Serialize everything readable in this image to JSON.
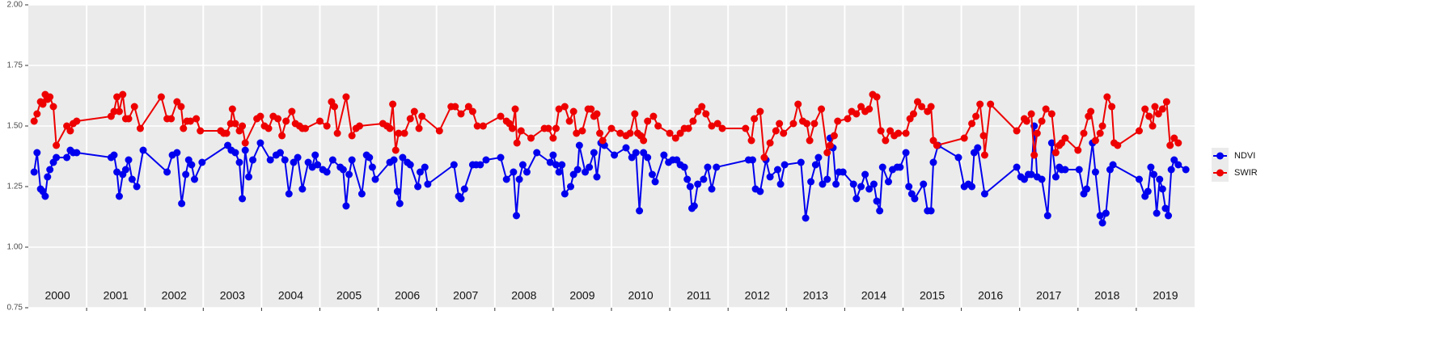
{
  "chart_data": {
    "type": "line",
    "xlim": [
      2000,
      2020
    ],
    "ylim": [
      0.75,
      2.0
    ],
    "yticks": [
      {
        "value": 0.75,
        "label": "0.75"
      },
      {
        "value": 1.0,
        "label": "1.00"
      },
      {
        "value": 1.25,
        "label": "1.25"
      },
      {
        "value": 1.5,
        "label": "1.50"
      },
      {
        "value": 1.75,
        "label": "1.75"
      },
      {
        "value": 2.0,
        "label": "2.00"
      }
    ],
    "xticks": [
      2001,
      2002,
      2003,
      2004,
      2005,
      2006,
      2007,
      2008,
      2009,
      2010,
      2011,
      2012,
      2013,
      2014,
      2015,
      2016,
      2017,
      2018,
      2019
    ],
    "year_labels": [
      2000,
      2001,
      2002,
      2003,
      2004,
      2005,
      2006,
      2007,
      2008,
      2009,
      2010,
      2011,
      2012,
      2013,
      2014,
      2015,
      2016,
      2017,
      2018,
      2019
    ],
    "grid": true,
    "legend": "right",
    "series": [
      {
        "name": "NDVI",
        "color": "#0000ee",
        "x": [
          2000.1,
          2000.15,
          2000.21,
          2000.25,
          2000.29,
          2000.33,
          2000.37,
          2000.43,
          2000.48,
          2000.66,
          2000.72,
          2000.77,
          2000.83,
          2001.42,
          2001.47,
          2001.52,
          2001.56,
          2001.62,
          2001.67,
          2001.72,
          2001.78,
          2001.86,
          2001.97,
          2002.38,
          2002.47,
          2002.55,
          2002.63,
          2002.7,
          2002.75,
          2002.8,
          2002.85,
          2002.98,
          2003.42,
          2003.48,
          2003.55,
          2003.62,
          2003.67,
          2003.72,
          2003.78,
          2003.85,
          2003.98,
          2004.15,
          2004.25,
          2004.32,
          2004.4,
          2004.47,
          2004.55,
          2004.62,
          2004.7,
          2004.8,
          2004.87,
          2004.92,
          2004.96,
          2005.05,
          2005.12,
          2005.22,
          2005.35,
          2005.4,
          2005.45,
          2005.5,
          2005.55,
          2005.72,
          2005.8,
          2005.85,
          2005.9,
          2005.95,
          2006.2,
          2006.27,
          2006.33,
          2006.37,
          2006.42,
          2006.5,
          2006.55,
          2006.68,
          2006.72,
          2006.8,
          2006.85,
          2007.3,
          2007.38,
          2007.42,
          2007.48,
          2007.62,
          2007.68,
          2007.75,
          2007.85,
          2008.1,
          2008.2,
          2008.32,
          2008.37,
          2008.42,
          2008.48,
          2008.55,
          2008.72,
          2008.95,
          2009.0,
          2009.05,
          2009.1,
          2009.15,
          2009.2,
          2009.3,
          2009.35,
          2009.42,
          2009.45,
          2009.55,
          2009.62,
          2009.7,
          2009.75,
          2009.82,
          2009.88,
          2010.05,
          2010.25,
          2010.35,
          2010.42,
          2010.48,
          2010.55,
          2010.62,
          2010.7,
          2010.75,
          2010.9,
          2010.98,
          2011.05,
          2011.12,
          2011.18,
          2011.25,
          2011.3,
          2011.35,
          2011.38,
          2011.42,
          2011.48,
          2011.58,
          2011.65,
          2011.72,
          2011.8,
          2012.35,
          2012.42,
          2012.47,
          2012.55,
          2012.65,
          2012.72,
          2012.85,
          2012.9,
          2012.97,
          2013.25,
          2013.33,
          2013.42,
          2013.5,
          2013.55,
          2013.62,
          2013.7,
          2013.75,
          2013.8,
          2013.85,
          2013.9,
          2013.97,
          2014.15,
          2014.2,
          2014.28,
          2014.35,
          2014.42,
          2014.5,
          2014.55,
          2014.6,
          2014.65,
          2014.75,
          2014.82,
          2014.9,
          2014.95,
          2015.05,
          2015.1,
          2015.15,
          2015.2,
          2015.35,
          2015.42,
          2015.48,
          2015.52,
          2015.6,
          2015.95,
          2016.05,
          2016.12,
          2016.18,
          2016.22,
          2016.28,
          2016.4,
          2016.95,
          2017.02,
          2017.08,
          2017.15,
          2017.2,
          2017.25,
          2017.3,
          2017.38,
          2017.48,
          2017.55,
          2017.62,
          2017.68,
          2017.72,
          2017.78,
          2018.02,
          2018.1,
          2018.15,
          2018.25,
          2018.3,
          2018.38,
          2018.42,
          2018.48,
          2018.55,
          2018.6,
          2019.05,
          2019.15,
          2019.2,
          2019.25,
          2019.3,
          2019.35,
          2019.4,
          2019.45,
          2019.5,
          2019.55,
          2019.6,
          2019.65,
          2019.72,
          2019.85
        ],
        "values": [
          1.31,
          1.39,
          1.24,
          1.23,
          1.21,
          1.29,
          1.32,
          1.35,
          1.37,
          1.37,
          1.4,
          1.39,
          1.39,
          1.37,
          1.38,
          1.31,
          1.21,
          1.3,
          1.32,
          1.36,
          1.28,
          1.25,
          1.4,
          1.31,
          1.38,
          1.39,
          1.18,
          1.3,
          1.36,
          1.34,
          1.28,
          1.35,
          1.42,
          1.4,
          1.39,
          1.35,
          1.2,
          1.4,
          1.29,
          1.36,
          1.43,
          1.36,
          1.38,
          1.39,
          1.36,
          1.22,
          1.35,
          1.37,
          1.24,
          1.35,
          1.33,
          1.38,
          1.34,
          1.32,
          1.31,
          1.36,
          1.33,
          1.32,
          1.17,
          1.3,
          1.36,
          1.22,
          1.38,
          1.37,
          1.33,
          1.28,
          1.35,
          1.36,
          1.23,
          1.18,
          1.37,
          1.35,
          1.34,
          1.25,
          1.31,
          1.33,
          1.26,
          1.34,
          1.21,
          1.2,
          1.24,
          1.34,
          1.34,
          1.34,
          1.36,
          1.37,
          1.28,
          1.31,
          1.13,
          1.28,
          1.34,
          1.31,
          1.39,
          1.35,
          1.38,
          1.34,
          1.31,
          1.34,
          1.22,
          1.25,
          1.3,
          1.32,
          1.42,
          1.31,
          1.33,
          1.39,
          1.29,
          1.43,
          1.42,
          1.38,
          1.41,
          1.37,
          1.39,
          1.15,
          1.39,
          1.37,
          1.3,
          1.27,
          1.38,
          1.35,
          1.36,
          1.36,
          1.34,
          1.33,
          1.28,
          1.25,
          1.16,
          1.17,
          1.26,
          1.28,
          1.33,
          1.24,
          1.33,
          1.36,
          1.36,
          1.24,
          1.23,
          1.36,
          1.29,
          1.32,
          1.26,
          1.34,
          1.35,
          1.12,
          1.27,
          1.34,
          1.37,
          1.26,
          1.28,
          1.45,
          1.41,
          1.26,
          1.31,
          1.31,
          1.26,
          1.2,
          1.25,
          1.3,
          1.24,
          1.26,
          1.19,
          1.15,
          1.33,
          1.27,
          1.32,
          1.33,
          1.33,
          1.39,
          1.25,
          1.22,
          1.2,
          1.26,
          1.15,
          1.15,
          1.35,
          1.42,
          1.37,
          1.25,
          1.26,
          1.25,
          1.39,
          1.41,
          1.22,
          1.33,
          1.29,
          1.28,
          1.3,
          1.3,
          1.5,
          1.29,
          1.28,
          1.13,
          1.43,
          1.29,
          1.33,
          1.32,
          1.32,
          1.32,
          1.22,
          1.24,
          1.43,
          1.31,
          1.13,
          1.1,
          1.14,
          1.32,
          1.34,
          1.28,
          1.21,
          1.23,
          1.33,
          1.3,
          1.14,
          1.28,
          1.24,
          1.16,
          1.13,
          1.32,
          1.36,
          1.34,
          1.32
        ]
      },
      {
        "name": "SWIR",
        "color": "#ee0000",
        "x": [
          2000.1,
          2000.15,
          2000.21,
          2000.25,
          2000.29,
          2000.33,
          2000.37,
          2000.43,
          2000.48,
          2000.66,
          2000.72,
          2000.77,
          2000.83,
          2001.42,
          2001.47,
          2001.52,
          2001.56,
          2001.62,
          2001.67,
          2001.72,
          2001.82,
          2001.92,
          2002.28,
          2002.38,
          2002.45,
          2002.55,
          2002.62,
          2002.66,
          2002.72,
          2002.78,
          2002.88,
          2002.95,
          2003.3,
          2003.35,
          2003.4,
          2003.47,
          2003.5,
          2003.55,
          2003.62,
          2003.67,
          2003.72,
          2003.92,
          2003.98,
          2004.05,
          2004.12,
          2004.2,
          2004.28,
          2004.35,
          2004.42,
          2004.52,
          2004.58,
          2004.65,
          2004.7,
          2004.75,
          2005.0,
          2005.12,
          2005.2,
          2005.25,
          2005.3,
          2005.45,
          2005.55,
          2005.62,
          2005.68,
          2006.08,
          2006.15,
          2006.2,
          2006.25,
          2006.3,
          2006.35,
          2006.45,
          2006.55,
          2006.62,
          2006.7,
          2006.75,
          2007.05,
          2007.25,
          2007.32,
          2007.42,
          2007.55,
          2007.62,
          2007.7,
          2007.8,
          2008.1,
          2008.2,
          2008.25,
          2008.3,
          2008.35,
          2008.38,
          2008.45,
          2008.62,
          2008.85,
          2008.92,
          2009.0,
          2009.05,
          2009.1,
          2009.2,
          2009.28,
          2009.35,
          2009.4,
          2009.5,
          2009.6,
          2009.65,
          2009.7,
          2009.75,
          2009.8,
          2009.85,
          2010.0,
          2010.15,
          2010.25,
          2010.32,
          2010.4,
          2010.45,
          2010.5,
          2010.55,
          2010.62,
          2010.72,
          2010.8,
          2011.0,
          2011.1,
          2011.18,
          2011.25,
          2011.32,
          2011.4,
          2011.48,
          2011.55,
          2011.62,
          2011.72,
          2011.82,
          2011.9,
          2012.3,
          2012.4,
          2012.45,
          2012.55,
          2012.62,
          2012.72,
          2012.82,
          2012.88,
          2012.95,
          2013.12,
          2013.2,
          2013.28,
          2013.35,
          2013.4,
          2013.48,
          2013.6,
          2013.7,
          2013.75,
          2013.82,
          2013.88,
          2014.05,
          2014.12,
          2014.2,
          2014.28,
          2014.35,
          2014.42,
          2014.48,
          2014.55,
          2014.62,
          2014.7,
          2014.78,
          2014.85,
          2014.92,
          2015.05,
          2015.12,
          2015.18,
          2015.25,
          2015.32,
          2015.42,
          2015.48,
          2015.52,
          2015.58,
          2016.05,
          2016.18,
          2016.25,
          2016.32,
          2016.38,
          2016.4,
          2016.5,
          2016.95,
          2017.08,
          2017.12,
          2017.2,
          2017.25,
          2017.3,
          2017.38,
          2017.45,
          2017.55,
          2017.62,
          2017.68,
          2017.72,
          2017.78,
          2018.0,
          2018.1,
          2018.18,
          2018.22,
          2018.3,
          2018.38,
          2018.42,
          2018.5,
          2018.58,
          2018.62,
          2018.68,
          2019.05,
          2019.15,
          2019.22,
          2019.28,
          2019.32,
          2019.38,
          2019.45,
          2019.52,
          2019.58,
          2019.65,
          2019.72
        ],
        "values": [
          1.52,
          1.55,
          1.6,
          1.59,
          1.63,
          1.61,
          1.62,
          1.58,
          1.42,
          1.5,
          1.48,
          1.51,
          1.52,
          1.54,
          1.56,
          1.62,
          1.56,
          1.63,
          1.53,
          1.53,
          1.58,
          1.49,
          1.62,
          1.53,
          1.53,
          1.6,
          1.58,
          1.49,
          1.52,
          1.52,
          1.53,
          1.48,
          1.48,
          1.47,
          1.47,
          1.51,
          1.57,
          1.51,
          1.48,
          1.5,
          1.43,
          1.53,
          1.54,
          1.5,
          1.49,
          1.54,
          1.53,
          1.46,
          1.52,
          1.56,
          1.51,
          1.5,
          1.49,
          1.49,
          1.52,
          1.5,
          1.6,
          1.58,
          1.47,
          1.62,
          1.46,
          1.49,
          1.5,
          1.51,
          1.5,
          1.49,
          1.59,
          1.4,
          1.47,
          1.47,
          1.53,
          1.56,
          1.49,
          1.54,
          1.48,
          1.58,
          1.58,
          1.55,
          1.58,
          1.56,
          1.5,
          1.5,
          1.54,
          1.52,
          1.51,
          1.49,
          1.57,
          1.43,
          1.48,
          1.45,
          1.49,
          1.49,
          1.45,
          1.49,
          1.57,
          1.58,
          1.52,
          1.56,
          1.47,
          1.48,
          1.57,
          1.57,
          1.54,
          1.55,
          1.47,
          1.44,
          1.49,
          1.47,
          1.46,
          1.47,
          1.55,
          1.47,
          1.46,
          1.44,
          1.52,
          1.54,
          1.5,
          1.47,
          1.45,
          1.47,
          1.49,
          1.49,
          1.52,
          1.56,
          1.58,
          1.55,
          1.5,
          1.51,
          1.49,
          1.49,
          1.44,
          1.53,
          1.56,
          1.37,
          1.43,
          1.48,
          1.51,
          1.47,
          1.51,
          1.59,
          1.52,
          1.51,
          1.44,
          1.51,
          1.57,
          1.39,
          1.42,
          1.46,
          1.52,
          1.53,
          1.56,
          1.55,
          1.58,
          1.56,
          1.57,
          1.63,
          1.62,
          1.48,
          1.44,
          1.48,
          1.46,
          1.47,
          1.47,
          1.53,
          1.55,
          1.6,
          1.58,
          1.56,
          1.58,
          1.44,
          1.42,
          1.45,
          1.51,
          1.54,
          1.59,
          1.46,
          1.38,
          1.59,
          1.48,
          1.53,
          1.52,
          1.55,
          1.38,
          1.47,
          1.52,
          1.57,
          1.55,
          1.39,
          1.42,
          1.43,
          1.45,
          1.4,
          1.47,
          1.54,
          1.56,
          1.44,
          1.47,
          1.5,
          1.62,
          1.58,
          1.43,
          1.42,
          1.48,
          1.57,
          1.54,
          1.5,
          1.58,
          1.55,
          1.57,
          1.6,
          1.42,
          1.45,
          1.43
        ]
      }
    ]
  }
}
